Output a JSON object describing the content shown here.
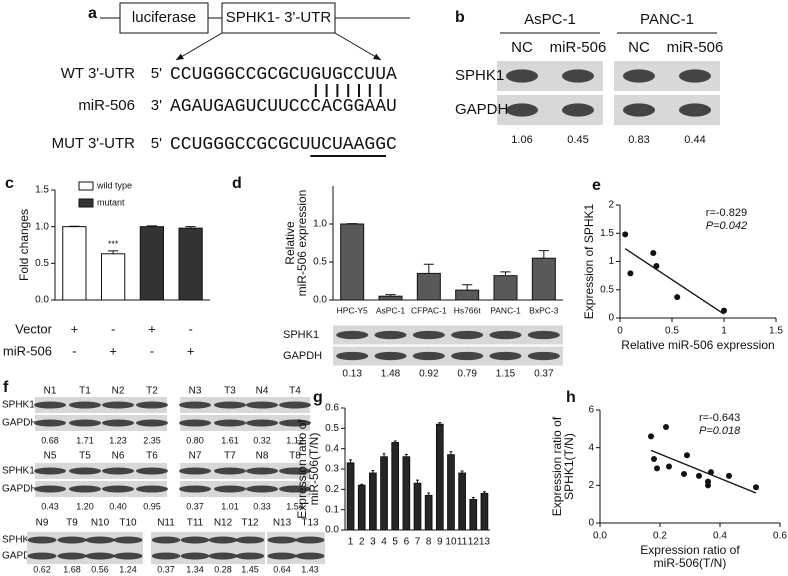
{
  "panels": {
    "a": {
      "label": "a",
      "construct": [
        "luciferase",
        "SPHK1- 3'-UTR"
      ],
      "rows": [
        {
          "name": "WT 3'-UTR",
          "end": "5'",
          "sequence": "CCUGGGCCGCGCUGUGCCUUA"
        },
        {
          "name": "miR-506",
          "end": "3'",
          "sequence": "AGAUGAGUCUUCCCACGGAAU"
        },
        {
          "name": "MUT 3'-UTR",
          "end": "5'",
          "sequence": "CCUGGGCCGCGCUUCUAAGGC"
        }
      ]
    },
    "b": {
      "label": "b",
      "bands": [
        "SPHK1",
        "GAPDH"
      ],
      "cell_lines": [
        {
          "name": "AsPC-1",
          "lanes": [
            "NC",
            "miR-506"
          ],
          "ratios": [
            "1.06",
            "0.45"
          ]
        },
        {
          "name": "PANC-1",
          "lanes": [
            "NC",
            "miR-506"
          ],
          "ratios": [
            "0.83",
            "0.44"
          ]
        }
      ]
    },
    "f": {
      "label": "f",
      "rows": [
        {
          "bands": [
            "SPHK1",
            "GAPDH"
          ],
          "groups": [
            {
              "lanes": [
                "N1",
                "T1",
                "N2",
                "T2"
              ],
              "ratios": [
                "0.68",
                "1.71",
                "1.23",
                "2.35"
              ]
            },
            {
              "lanes": [
                "N3",
                "T3",
                "N4",
                "T4"
              ],
              "ratios": [
                "0.80",
                "1.61",
                "0.32",
                "1.12"
              ]
            }
          ]
        },
        {
          "bands": [
            "SPHK1",
            "GAPDH"
          ],
          "groups": [
            {
              "lanes": [
                "N5",
                "T5",
                "N6",
                "T6"
              ],
              "ratios": [
                "0.43",
                "1.20",
                "0.40",
                "0.95"
              ]
            },
            {
              "lanes": [
                "N7",
                "T7",
                "N8",
                "T8"
              ],
              "ratios": [
                "0.37",
                "1.01",
                "0.33",
                "1.54"
              ]
            }
          ]
        },
        {
          "bands": [
            "SPHK1",
            "GAPDH"
          ],
          "groups": [
            {
              "lanes": [
                "N9",
                "T9",
                "N10",
                "T10"
              ],
              "ratios": [
                "0.62",
                "1.68",
                "0.56",
                "1.24"
              ]
            },
            {
              "lanes": [
                "N11",
                "T11",
                "N12",
                "T12"
              ],
              "ratios": [
                "0.37",
                "1.34",
                "0.28",
                "1.45"
              ]
            },
            {
              "lanes": [
                "N13",
                "T13"
              ],
              "ratios": [
                "0.64",
                "1.43"
              ]
            }
          ]
        }
      ]
    }
  },
  "chart_data": [
    {
      "type": "bar",
      "label": "c",
      "ylabel": [
        "Fold changes"
      ],
      "categories": [
        null,
        null,
        null,
        null
      ],
      "conditions": [
        {
          "name": "Vector",
          "signs": [
            "+",
            "-",
            "+",
            "-"
          ]
        },
        {
          "name": "miR-506",
          "signs": [
            "-",
            "+",
            "-",
            "+"
          ]
        }
      ],
      "series": [
        {
          "name": "wild type",
          "color": "#ffffff",
          "values": [
            1.0,
            0.63,
            null,
            null
          ],
          "errors": [
            0.005,
            0.04,
            null,
            null
          ]
        },
        {
          "name": "mutant",
          "color": "#333333",
          "values": [
            null,
            null,
            1.0,
            0.98
          ],
          "errors": [
            null,
            null,
            0.01,
            0.02
          ]
        }
      ],
      "annotation": "***",
      "ylim": [
        0,
        1.5
      ],
      "yticks": [
        {
          "value": 0,
          "label": "0.0"
        },
        0.5,
        {
          "value": 1,
          "label": "1.0"
        },
        1.5
      ]
    },
    {
      "type": "bar",
      "label": "d",
      "ylabel": [
        "Relative",
        "miR-506 expression"
      ],
      "categories": [
        "HPC-Y5",
        "AsPC-1",
        "CFPAC-1",
        "Hs766t",
        "PANC-1",
        "BxPC-3"
      ],
      "series": [
        {
          "color": "#595959",
          "values": [
            1.0,
            0.05,
            0.35,
            0.13,
            0.32,
            0.55
          ],
          "errors": [
            0.005,
            0.02,
            0.12,
            0.07,
            0.05,
            0.1
          ]
        }
      ],
      "ylim": [
        0,
        1.5
      ],
      "yticks": [
        {
          "value": 0,
          "label": "0.0"
        },
        0.5,
        {
          "value": 1,
          "label": "1.0"
        }
      ],
      "blot": {
        "bands": [
          "SPHK1",
          "GAPDH"
        ],
        "ratios": [
          "0.13",
          "1.48",
          "0.92",
          "0.79",
          "1.15",
          "0.37"
        ]
      }
    },
    {
      "type": "scatter",
      "label": "e",
      "ylabel": [
        "Expression of SPHK1"
      ],
      "xlabel": [
        "Relative miR-506 expression"
      ],
      "x": [
        0.05,
        0.1,
        0.32,
        0.35,
        0.55,
        1.0
      ],
      "y": [
        1.48,
        0.79,
        1.15,
        0.92,
        0.37,
        0.13
      ],
      "stats": [
        "r=-0.829",
        "P=0.042"
      ],
      "fit": true,
      "xlim": [
        0,
        1.5
      ],
      "xticks": [
        0,
        0.5,
        1,
        1.5
      ],
      "ylim": [
        0,
        2
      ],
      "yticks": [
        0,
        0.5,
        1,
        1.5,
        2
      ]
    },
    {
      "type": "bar",
      "label": "g",
      "ylabel": [
        "Expression ratio of",
        "miR-506(T/N)"
      ],
      "categories": [
        "1",
        "2",
        "3",
        "4",
        "5",
        "6",
        "7",
        "8",
        "9",
        "10",
        "11",
        "12",
        "13"
      ],
      "series": [
        {
          "color": "#262626",
          "values": [
            0.33,
            0.22,
            0.28,
            0.36,
            0.43,
            0.36,
            0.23,
            0.17,
            0.52,
            0.37,
            0.28,
            0.15,
            0.18
          ],
          "errors": [
            0.015,
            0.005,
            0.012,
            0.015,
            0.008,
            0.012,
            0.015,
            0.012,
            0.008,
            0.015,
            0.01,
            0.01,
            0.008
          ]
        }
      ],
      "ylim": [
        0,
        0.6
      ],
      "yticks": [
        {
          "value": 0,
          "label": "0.0"
        },
        0.1,
        0.2,
        0.3,
        0.4,
        0.5,
        0.6
      ]
    },
    {
      "type": "scatter",
      "label": "h",
      "ylabel": [
        "Expression ratio of",
        "SPHK1(T/N)"
      ],
      "xlabel": [
        "Expression ratio of",
        "miR-506(T/N)"
      ],
      "x": [
        0.17,
        0.18,
        0.19,
        0.22,
        0.23,
        0.28,
        0.29,
        0.33,
        0.36,
        0.36,
        0.37,
        0.43,
        0.52
      ],
      "y": [
        4.6,
        3.4,
        2.9,
        5.1,
        3.0,
        2.6,
        3.6,
        2.5,
        2.0,
        2.2,
        2.7,
        2.5,
        1.9
      ],
      "stats": [
        "r=-0.643",
        "P=0.018"
      ],
      "fit": true,
      "xlim": [
        0,
        0.6
      ],
      "xticks": [
        {
          "value": 0,
          "label": "0.0"
        },
        0.2,
        0.4,
        0.6
      ],
      "ylim": [
        0,
        6
      ],
      "yticks": [
        0,
        2,
        4,
        6
      ]
    }
  ]
}
